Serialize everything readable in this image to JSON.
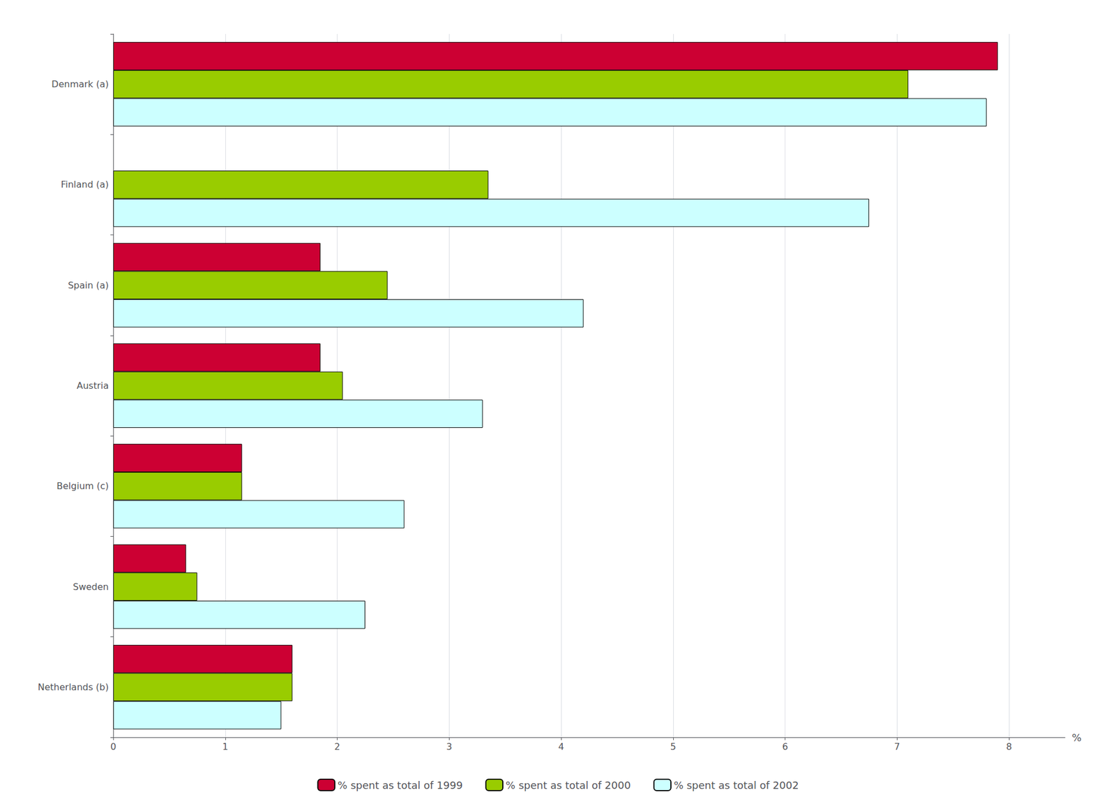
{
  "chart_data": {
    "type": "bar",
    "orientation": "horizontal",
    "categories": [
      "Denmark (a)",
      "Finland (a)",
      "Spain (a)",
      "Austria",
      "Belgium (c)",
      "Sweden",
      "Netherlands (b)"
    ],
    "series": [
      {
        "name": "% spent as total of 1999",
        "color": "#cc0033",
        "values": [
          7.9,
          null,
          1.85,
          1.85,
          1.15,
          0.65,
          1.6
        ]
      },
      {
        "name": "% spent as total of 2000",
        "color": "#99cc00",
        "values": [
          7.1,
          3.35,
          2.45,
          2.05,
          1.15,
          0.75,
          1.6
        ]
      },
      {
        "name": "% spent as total of 2002",
        "color": "#ccffff",
        "values": [
          7.8,
          6.75,
          4.2,
          3.3,
          2.6,
          2.25,
          1.5
        ]
      }
    ],
    "xlabel": "%",
    "xlim": [
      0,
      8.5
    ],
    "xticks": [
      0,
      1,
      2,
      3,
      4,
      5,
      6,
      7,
      8
    ],
    "grid": true,
    "legend": "bottom"
  }
}
